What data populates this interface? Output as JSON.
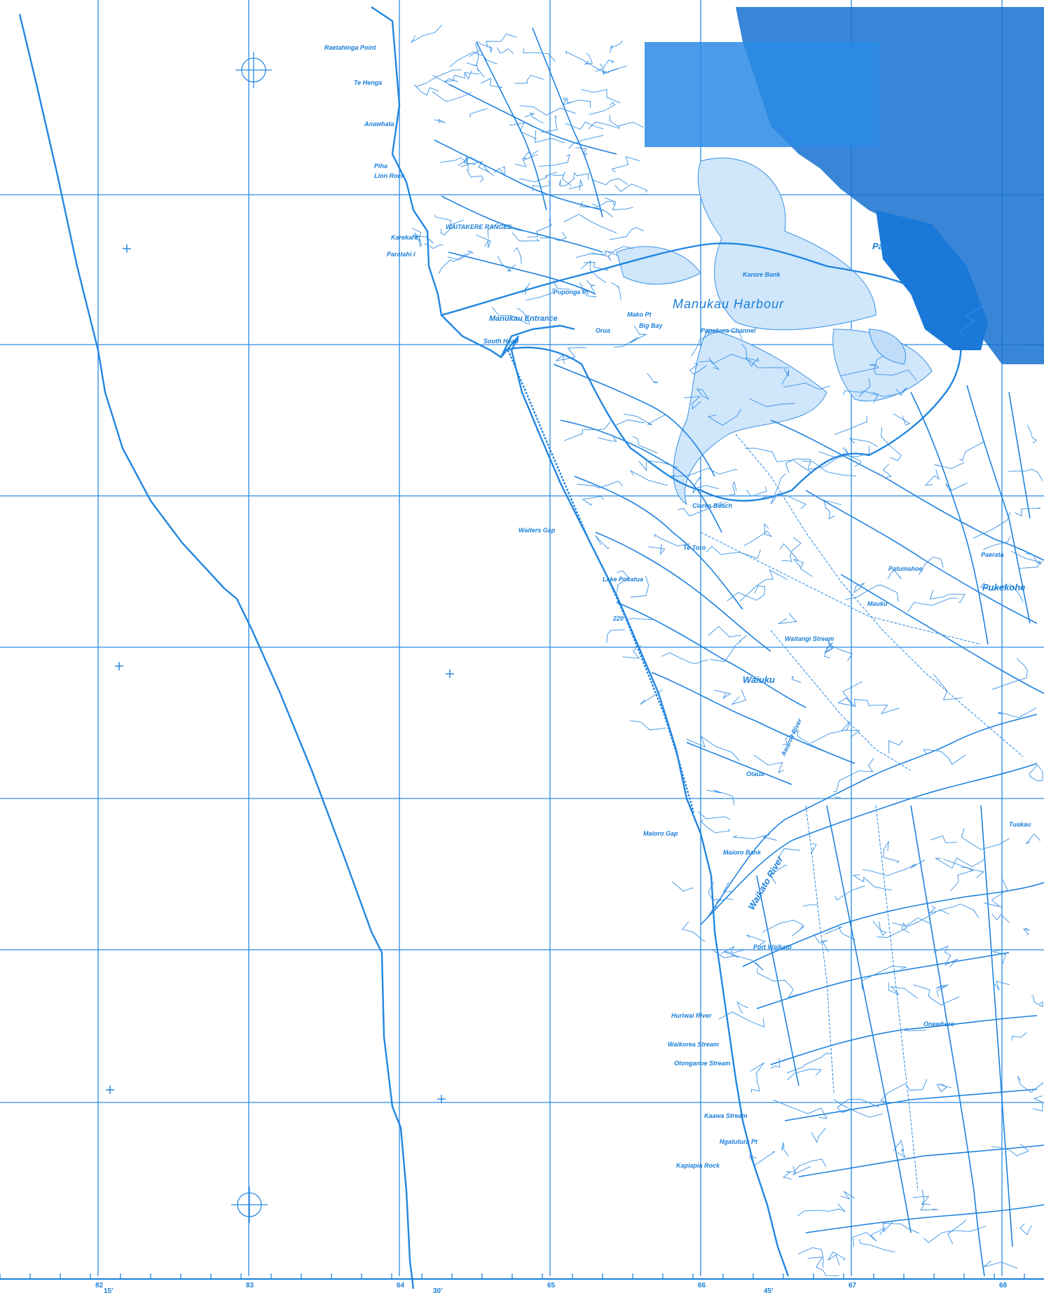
{
  "colors": {
    "ink": "#1a7fd8",
    "urban": "#1670d0",
    "background": "#ffffff",
    "blurred_patch": "#2a8be6"
  },
  "eastings": [
    "82",
    "83",
    "64",
    "65",
    "66",
    "67",
    "68"
  ],
  "longitude_ticks": [
    "15'",
    "30'",
    "45'"
  ],
  "place_labels": {
    "manukau_harbour": "Manukau Harbour",
    "waitakere_ranges": "WAITAKERE RANGES",
    "papatoetoe": "Papatoetoe",
    "manukau_entrance": "Manukau Entrance",
    "puponga_pt": "Puponga Pt",
    "mako_pt": "Mako Pt",
    "big_bay": "Big Bay",
    "orua": "Orua",
    "south_head": "South Head",
    "pahurehure_channel": "Papakura Channel",
    "karore_bank": "Karore Bank",
    "waiters_gap": "Waiters Gap",
    "lake_pokatua": "Lake Pokatua",
    "waikato_river": "Waikato River",
    "maioro_gap": "Maioro Gap",
    "port_waikato": "Port Waikato",
    "huriwai_river": "Huriwai River",
    "waikorea_stream": "Waikorea Stream",
    "otonganoe_stream": "Otonganoe Stream",
    "kaawa_stream": "Kaawa Stream",
    "ngatutura_pt": "Ngatutura Pt",
    "kapiapia_rock": "Kapiapia Rock",
    "te_henga": "Te Henga",
    "anawhata": "Anawhata",
    "piha": "Piha",
    "lion_rock": "Lion Rock",
    "karekare": "Karekare",
    "paratahi_i": "Paratahi I",
    "ruatahinga_point": "Raetahinga Point",
    "pukekohe": "Pukekohe",
    "waiuku": "Waiuku",
    "tuakau": "Tuakau",
    "te_toro": "Te Toro",
    "clarks_beach": "Clarks Beach",
    "patumahoe": "Patumahoe",
    "mauku": "Mauku",
    "waitangi_stream": "Waitangi Stream",
    "awaroa_river": "Awaroa River",
    "otaua": "Otaua",
    "mauaia_bank": "Maioro Bank",
    "paerata": "Paerata",
    "onewhero": "Onewhero",
    "elevation_220": "220"
  }
}
